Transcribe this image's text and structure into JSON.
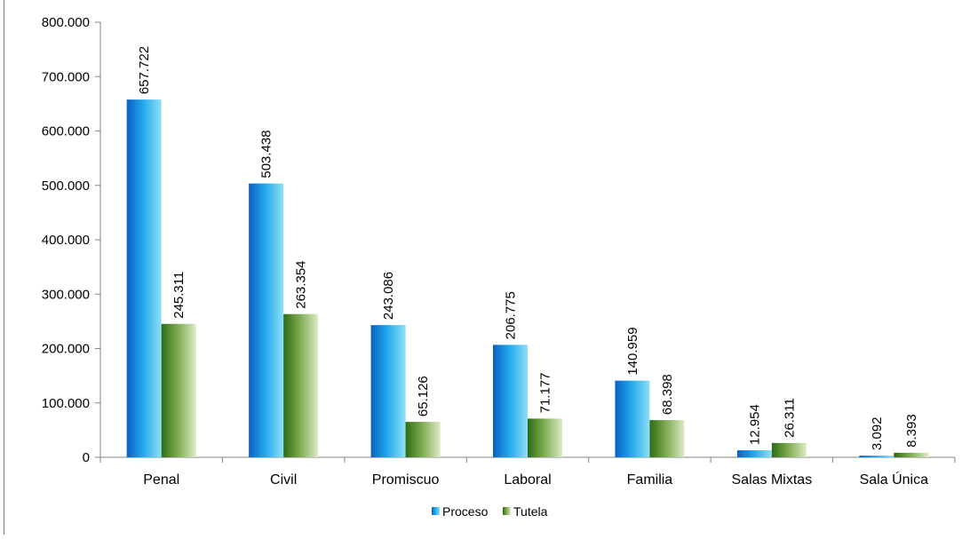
{
  "chart_data": {
    "type": "bar",
    "title": "",
    "xlabel": "",
    "ylabel": "",
    "categories": [
      "Penal",
      "Civil",
      "Promiscuo",
      "Laboral",
      "Familia",
      "Salas Mixtas",
      "Sala Única"
    ],
    "series": [
      {
        "name": "Proceso",
        "values": [
          657722,
          503438,
          243086,
          206775,
          140959,
          12954,
          3092
        ],
        "labels": [
          "657.722",
          "503.438",
          "243.086",
          "206.775",
          "140.959",
          "12.954",
          "3.092"
        ],
        "color": "#1a9fe0"
      },
      {
        "name": "Tutela",
        "values": [
          245311,
          263354,
          65126,
          71177,
          68398,
          26311,
          8393
        ],
        "labels": [
          "245.311",
          "263.354",
          "65.126",
          "71.177",
          "68.398",
          "26.311",
          "8.393"
        ],
        "color": "#6a9d3e"
      }
    ],
    "ylim": [
      0,
      800000
    ],
    "yticks": [
      0,
      100000,
      200000,
      300000,
      400000,
      500000,
      600000,
      700000,
      800000
    ],
    "ytick_labels": [
      "0",
      "100.000",
      "200.000",
      "300.000",
      "400.000",
      "500.000",
      "600.000",
      "700.000",
      "800.000"
    ],
    "grid": false,
    "legend_position": "bottom"
  }
}
